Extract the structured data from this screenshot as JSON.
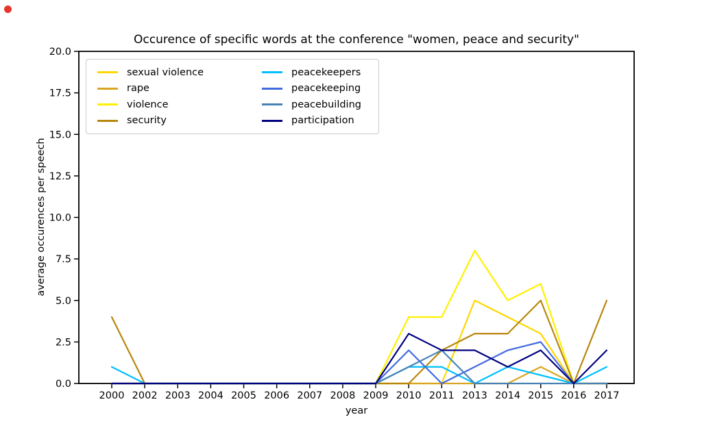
{
  "indicator": {
    "record_dot_color": "#e8362c"
  },
  "chart_data": {
    "type": "line",
    "title": "Occurence of specific words at the conference \"women, peace and security\"",
    "xlabel": "year",
    "ylabel": "average occurences per speech",
    "ylim": [
      0.0,
      20.0
    ],
    "ytick_labels": [
      "0.0",
      "2.5",
      "5.0",
      "7.5",
      "10.0",
      "12.5",
      "15.0",
      "17.5",
      "20.0"
    ],
    "categories": [
      "2000",
      "2002",
      "2003",
      "2004",
      "2005",
      "2006",
      "2007",
      "2008",
      "2009",
      "2010",
      "2011",
      "2013",
      "2014",
      "2015",
      "2016",
      "2017"
    ],
    "grid": false,
    "legend": {
      "position": "upper-left",
      "columns": 2
    },
    "series": [
      {
        "name": "sexual violence",
        "color": "#FFD700",
        "values": [
          0,
          0,
          0,
          0,
          0,
          0,
          0,
          0,
          0,
          0,
          0,
          5,
          4,
          3,
          0,
          0
        ]
      },
      {
        "name": "rape",
        "color": "#DAA520",
        "values": [
          0,
          0,
          0,
          0,
          0,
          0,
          0,
          0,
          0,
          0,
          0,
          0,
          0,
          1,
          0,
          0
        ]
      },
      {
        "name": "violence",
        "color": "#FFF000",
        "values": [
          0,
          0,
          0,
          0,
          0,
          0,
          0,
          0,
          0,
          4,
          4,
          8,
          5,
          6,
          0,
          0
        ]
      },
      {
        "name": "security",
        "color": "#B8860B",
        "values": [
          4,
          0,
          0,
          0,
          0,
          0,
          0,
          0,
          0,
          0,
          2,
          3,
          3,
          5,
          0,
          5
        ]
      },
      {
        "name": "peacekeepers",
        "color": "#00BFFF",
        "values": [
          1,
          0,
          0,
          0,
          0,
          0,
          0,
          0,
          0,
          1,
          1,
          0,
          1,
          0.5,
          0,
          1
        ]
      },
      {
        "name": "peacekeeping",
        "color": "#4169E1",
        "values": [
          0,
          0,
          0,
          0,
          0,
          0,
          0,
          0,
          0,
          2,
          0,
          1,
          2,
          2.5,
          0,
          0
        ]
      },
      {
        "name": "peacebuilding",
        "color": "#4682B4",
        "values": [
          0,
          0,
          0,
          0,
          0,
          0,
          0,
          0,
          0,
          1,
          2,
          0,
          0,
          0,
          0,
          0
        ]
      },
      {
        "name": "participation",
        "color": "#000080",
        "values": [
          0,
          0,
          0,
          0,
          0,
          0,
          0,
          0,
          0,
          3,
          2,
          2,
          1,
          2,
          0,
          2
        ]
      }
    ]
  }
}
